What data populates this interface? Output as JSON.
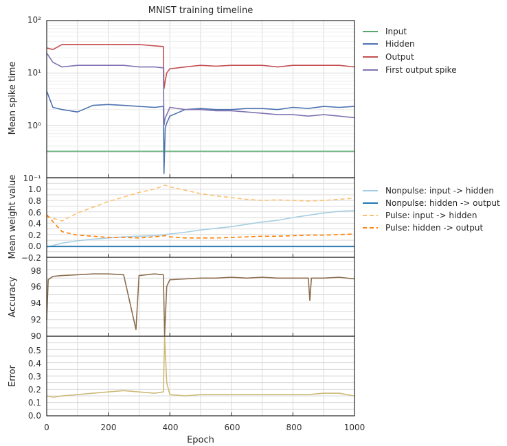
{
  "title": "MNIST training timeline",
  "xlabel": "Epoch",
  "xlim": [
    0,
    1000
  ],
  "x_ticks": [
    "0",
    "200",
    "400",
    "600",
    "800",
    "1000"
  ],
  "chart_data": [
    {
      "type": "line",
      "ylabel": "Mean spike time",
      "yscale": "log",
      "ylim": [
        0.1,
        100
      ],
      "y_ticks": [
        "10⁻¹",
        "10⁰",
        "10¹",
        "10²"
      ],
      "grid": true,
      "legend": "right",
      "x": [
        0,
        20,
        50,
        100,
        150,
        200,
        250,
        300,
        350,
        379,
        381,
        385,
        390,
        400,
        450,
        500,
        550,
        600,
        650,
        700,
        750,
        800,
        850,
        900,
        950,
        1000
      ],
      "series": [
        {
          "name": "Input",
          "color": "#55a868",
          "style": "solid",
          "values": [
            0.32,
            0.32,
            0.32,
            0.32,
            0.32,
            0.32,
            0.32,
            0.32,
            0.32,
            0.32,
            0.32,
            0.32,
            0.32,
            0.32,
            0.32,
            0.32,
            0.32,
            0.32,
            0.32,
            0.32,
            0.32,
            0.32,
            0.32,
            0.32,
            0.32,
            0.32
          ]
        },
        {
          "name": "Hidden",
          "color": "#4c72b0",
          "style": "solid",
          "values": [
            4.5,
            2.2,
            2.0,
            1.8,
            2.4,
            2.5,
            2.4,
            2.3,
            2.2,
            2.3,
            0.12,
            0.9,
            1.1,
            1.5,
            2.0,
            2.1,
            2.0,
            2.0,
            2.1,
            2.1,
            2.0,
            2.2,
            2.1,
            2.3,
            2.2,
            2.3
          ]
        },
        {
          "name": "Output",
          "color": "#c44e52",
          "style": "solid",
          "values": [
            30,
            28,
            35,
            35,
            35,
            35,
            35,
            35,
            33,
            32,
            5,
            7,
            10,
            12,
            13,
            14,
            13.5,
            14,
            14,
            14,
            13,
            14,
            14,
            14,
            14,
            13
          ]
        },
        {
          "name": "First output spike",
          "color": "#8172b2",
          "style": "solid",
          "values": [
            24,
            16,
            13,
            14,
            14,
            14,
            14,
            13,
            13,
            12.5,
            1.0,
            1.4,
            1.6,
            2.2,
            2.0,
            2.0,
            1.9,
            1.9,
            1.8,
            1.7,
            1.6,
            1.6,
            1.5,
            1.6,
            1.5,
            1.4
          ]
        }
      ]
    },
    {
      "type": "line",
      "ylabel": "Mean weight value",
      "ylim": [
        -0.2,
        1.2
      ],
      "y_ticks": [
        "−0.2",
        "0.0",
        "0.2",
        "0.4",
        "0.6",
        "0.8",
        "1.0"
      ],
      "grid": true,
      "legend": "right",
      "x": [
        0,
        50,
        100,
        150,
        200,
        250,
        300,
        350,
        385,
        400,
        450,
        500,
        550,
        600,
        650,
        700,
        750,
        800,
        850,
        900,
        950,
        1000
      ],
      "series": [
        {
          "name": "Nonpulse: input -> hidden",
          "color": "#a6cee3",
          "style": "solid",
          "values": [
            -0.02,
            0.05,
            0.09,
            0.12,
            0.14,
            0.16,
            0.17,
            0.18,
            0.2,
            0.21,
            0.24,
            0.28,
            0.31,
            0.34,
            0.38,
            0.42,
            0.45,
            0.5,
            0.54,
            0.58,
            0.61,
            0.62
          ]
        },
        {
          "name": "Nonpulse: hidden -> output",
          "color": "#1f78b4",
          "style": "solid",
          "values": [
            -0.01,
            -0.01,
            -0.01,
            -0.01,
            -0.01,
            -0.01,
            -0.01,
            -0.01,
            -0.01,
            -0.01,
            -0.01,
            -0.01,
            -0.01,
            -0.01,
            -0.01,
            -0.01,
            -0.01,
            -0.01,
            -0.01,
            -0.01,
            -0.01,
            -0.01
          ]
        },
        {
          "name": "Pulse: input -> hidden",
          "color": "#fdbf6f",
          "style": "dashed",
          "values": [
            0.52,
            0.44,
            0.58,
            0.68,
            0.78,
            0.86,
            0.94,
            1.0,
            1.07,
            1.04,
            0.98,
            0.92,
            0.88,
            0.85,
            0.82,
            0.8,
            0.81,
            0.8,
            0.79,
            0.8,
            0.82,
            0.84
          ]
        },
        {
          "name": "Pulse: hidden -> output",
          "color": "#ff7f00",
          "style": "dashed",
          "values": [
            0.55,
            0.25,
            0.19,
            0.17,
            0.15,
            0.15,
            0.14,
            0.16,
            0.18,
            0.16,
            0.14,
            0.14,
            0.14,
            0.15,
            0.16,
            0.17,
            0.17,
            0.18,
            0.19,
            0.19,
            0.2,
            0.21
          ]
        }
      ]
    },
    {
      "type": "line",
      "ylabel": "Accuracy",
      "ylim": [
        90,
        99.5
      ],
      "y_ticks": [
        "90",
        "92",
        "94",
        "96",
        "98"
      ],
      "grid": true,
      "x": [
        0,
        5,
        20,
        50,
        100,
        150,
        200,
        250,
        290,
        300,
        350,
        379,
        383,
        390,
        400,
        450,
        500,
        550,
        600,
        650,
        700,
        750,
        800,
        850,
        855,
        860,
        900,
        950,
        1000
      ],
      "series": [
        {
          "name": "",
          "color": "#8c6d4e",
          "style": "solid",
          "values": [
            92.0,
            96.8,
            97.2,
            97.3,
            97.4,
            97.5,
            97.5,
            97.4,
            90.8,
            97.3,
            97.5,
            97.4,
            90.1,
            96.0,
            96.8,
            96.9,
            97.0,
            97.0,
            97.1,
            97.0,
            97.1,
            97.0,
            97.0,
            97.0,
            94.3,
            97.0,
            97.0,
            97.1,
            96.9
          ]
        }
      ]
    },
    {
      "type": "line",
      "ylabel": "Error",
      "ylim": [
        0.0,
        0.6
      ],
      "y_ticks": [
        "0.0",
        "0.1",
        "0.2",
        "0.3",
        "0.4",
        "0.5"
      ],
      "grid": true,
      "x": [
        0,
        20,
        50,
        100,
        150,
        200,
        250,
        300,
        350,
        379,
        383,
        390,
        400,
        450,
        500,
        550,
        600,
        650,
        700,
        750,
        800,
        850,
        900,
        950,
        1000
      ],
      "series": [
        {
          "name": "",
          "color": "#ccb974",
          "style": "solid",
          "values": [
            0.15,
            0.14,
            0.15,
            0.16,
            0.17,
            0.18,
            0.19,
            0.18,
            0.17,
            0.18,
            0.75,
            0.25,
            0.16,
            0.15,
            0.16,
            0.16,
            0.16,
            0.16,
            0.16,
            0.16,
            0.16,
            0.16,
            0.17,
            0.17,
            0.15
          ]
        }
      ]
    }
  ]
}
